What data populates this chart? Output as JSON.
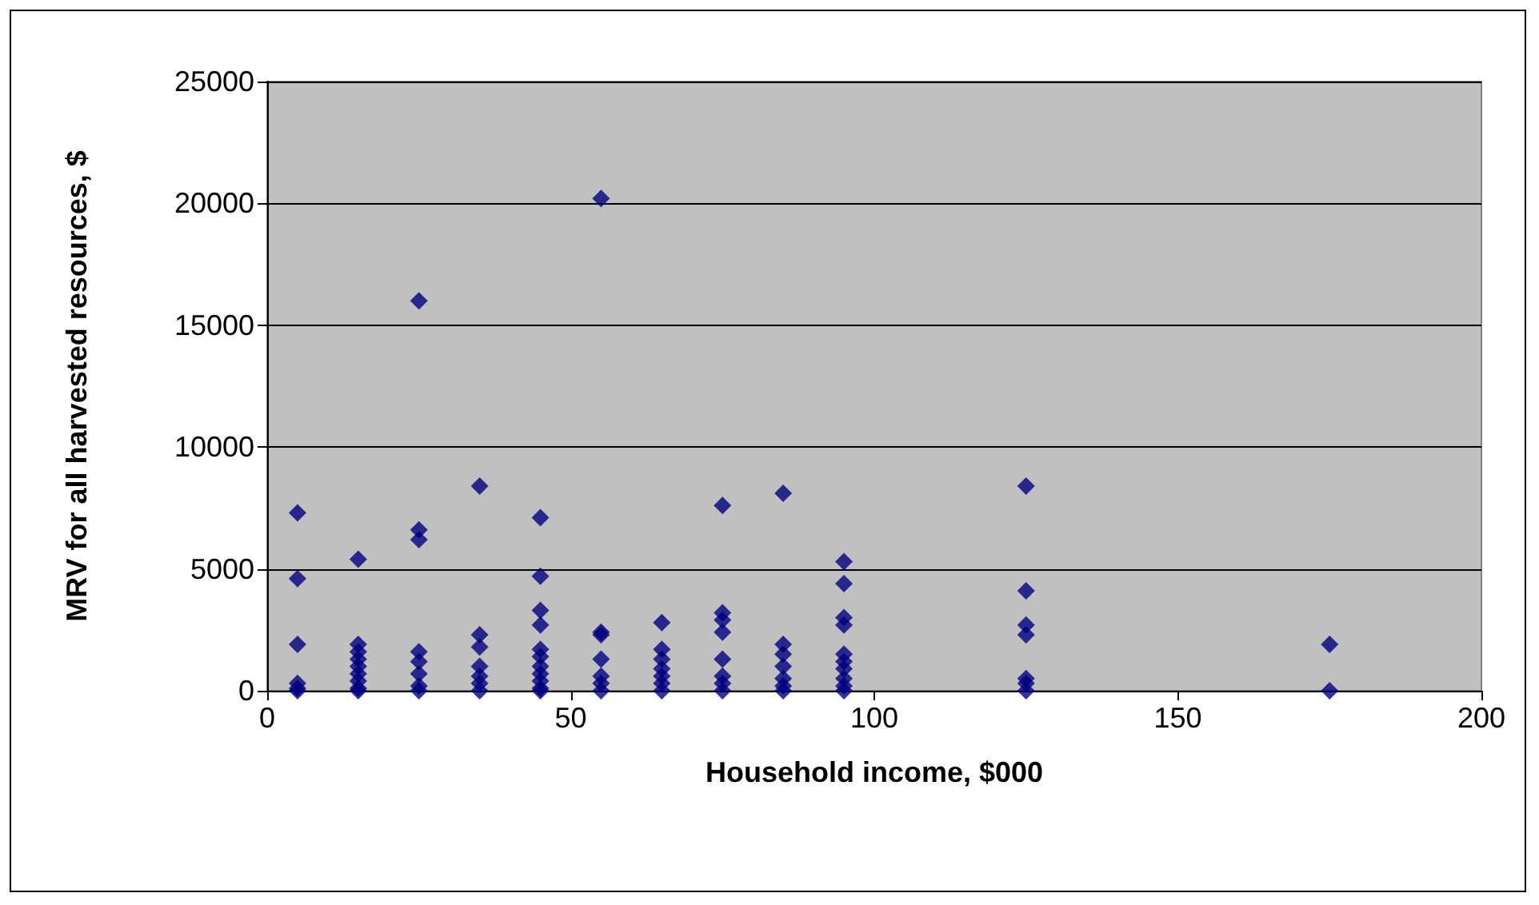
{
  "chart_data": {
    "type": "scatter",
    "xlabel": "Household income, $000",
    "ylabel": "MRV for all harvested resources, $",
    "x": [
      5,
      5,
      5,
      5,
      5,
      5,
      15,
      15,
      15,
      15,
      15,
      15,
      15,
      15,
      15,
      25,
      25,
      25,
      25,
      25,
      25,
      25,
      25,
      35,
      35,
      35,
      35,
      35,
      35,
      35,
      45,
      45,
      45,
      45,
      45,
      45,
      45,
      45,
      45,
      45,
      45,
      55,
      55,
      55,
      55,
      55,
      55,
      55,
      65,
      65,
      65,
      65,
      65,
      65,
      65,
      75,
      75,
      75,
      75,
      75,
      75,
      75,
      75,
      85,
      85,
      85,
      85,
      85,
      85,
      85,
      95,
      95,
      95,
      95,
      95,
      95,
      95,
      95,
      95,
      95,
      125,
      125,
      125,
      125,
      125,
      125,
      125,
      175,
      175
    ],
    "series": [
      {
        "color": "#000080",
        "values": [
          7300,
          4600,
          1900,
          300,
          100,
          0,
          5400,
          1900,
          1600,
          1300,
          1000,
          700,
          400,
          100,
          0,
          16000,
          6600,
          6200,
          1600,
          1200,
          700,
          200,
          0,
          8400,
          2300,
          1800,
          1000,
          600,
          300,
          0,
          7100,
          4700,
          3300,
          2700,
          1700,
          1400,
          1000,
          700,
          400,
          100,
          0,
          20200,
          2400,
          2300,
          1300,
          600,
          300,
          0,
          2800,
          1700,
          1300,
          900,
          600,
          300,
          0,
          7600,
          3200,
          2900,
          2400,
          1300,
          600,
          300,
          0,
          8100,
          1900,
          1500,
          1000,
          500,
          200,
          0,
          5300,
          4400,
          3000,
          2700,
          1500,
          1200,
          900,
          500,
          200,
          0,
          8400,
          4100,
          2700,
          2300,
          500,
          300,
          0,
          1900,
          0
        ]
      }
    ],
    "xlim": [
      0,
      200
    ],
    "xticks": [
      0,
      50,
      100,
      150,
      200
    ],
    "ylim": [
      0,
      25000
    ],
    "yticks": [
      0,
      5000,
      10000,
      15000,
      20000,
      25000
    ],
    "grid": "y",
    "marker": "diamond"
  }
}
